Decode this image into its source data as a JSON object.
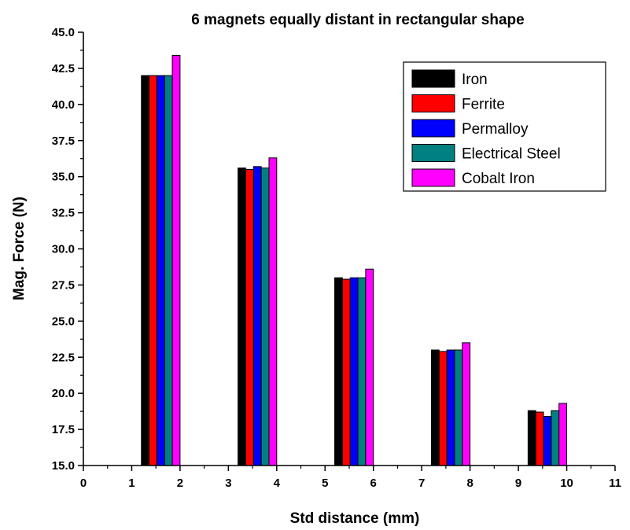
{
  "chart_data": {
    "type": "bar",
    "title": "6 magnets equally distant in rectangular shape",
    "xlabel": "Std distance (mm)",
    "ylabel": "Mag. Force (N)",
    "xlim": [
      0,
      11
    ],
    "ylim": [
      15.0,
      45.0
    ],
    "x_ticks": [
      "0",
      "1",
      "2",
      "3",
      "4",
      "5",
      "6",
      "7",
      "8",
      "9",
      "10",
      "11"
    ],
    "y_ticks": [
      "15.0",
      "17.5",
      "20.0",
      "22.5",
      "25.0",
      "27.5",
      "30.0",
      "32.5",
      "35.0",
      "37.5",
      "40.0",
      "42.5",
      "45.0"
    ],
    "group_centers": [
      1.6,
      3.6,
      5.6,
      7.6,
      9.6
    ],
    "bar_width": 0.16,
    "grid": false,
    "legend_position": "top-right",
    "series": [
      {
        "name": "Iron",
        "color": "#000000",
        "values": [
          42.0,
          35.6,
          28.0,
          23.0,
          18.8
        ]
      },
      {
        "name": "Ferrite",
        "color": "#ff0000",
        "values": [
          42.0,
          35.5,
          27.9,
          22.9,
          18.7
        ]
      },
      {
        "name": "Permalloy",
        "color": "#0000ff",
        "values": [
          42.0,
          35.7,
          28.0,
          23.0,
          18.4
        ]
      },
      {
        "name": "Electrical Steel",
        "color": "#008080",
        "values": [
          42.0,
          35.6,
          28.0,
          23.0,
          18.8
        ]
      },
      {
        "name": "Cobalt Iron",
        "color": "#ff00ff",
        "values": [
          43.4,
          36.3,
          28.6,
          23.5,
          19.3
        ]
      }
    ]
  }
}
